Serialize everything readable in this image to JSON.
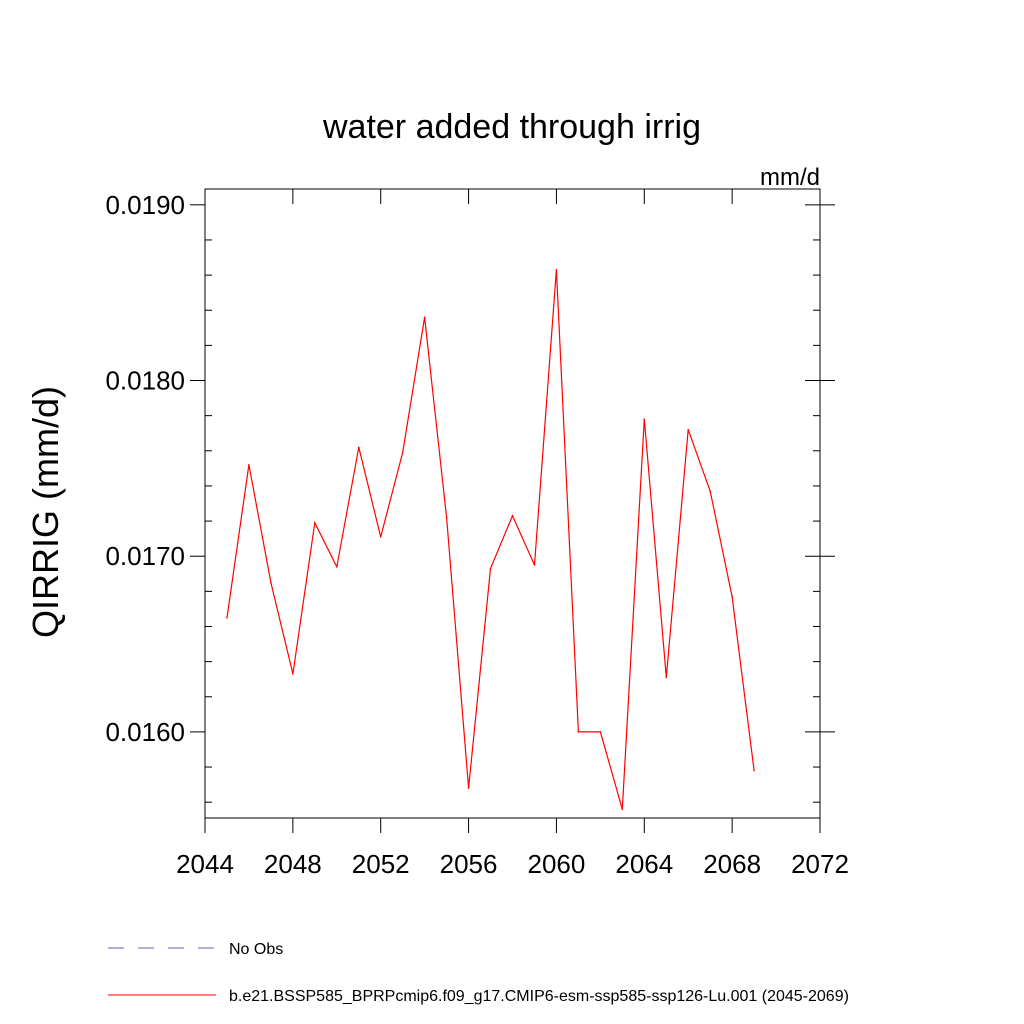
{
  "chart_data": {
    "type": "line",
    "title": "water added through irrig",
    "units": "mm/d",
    "ylabel": "QIRRIG  (mm/d)",
    "xlabel": "",
    "xlim": [
      2044,
      2072
    ],
    "ylim": [
      0.01551,
      0.01909
    ],
    "x_ticks": [
      2044,
      2048,
      2052,
      2056,
      2060,
      2064,
      2068,
      2072
    ],
    "x_tick_labels": [
      "2044",
      "2048",
      "2052",
      "2056",
      "2060",
      "2064",
      "2068",
      "2072"
    ],
    "y_ticks": [
      0.016,
      0.017,
      0.018,
      0.019
    ],
    "y_tick_labels": [
      "0.0160",
      "0.0170",
      "0.0180",
      "0.0190"
    ],
    "grid": false,
    "legend_position": "bottom",
    "series": [
      {
        "name": "No Obs",
        "color": "#6a5acd",
        "dash": "dashed",
        "x": [],
        "values": []
      },
      {
        "name": "b.e21.BSSP585_BPRPcmip6.f09_g17.CMIP6-esm-ssp585-ssp126-Lu.001 (2045-2069)",
        "color": "#ff0000",
        "dash": "solid",
        "x": [
          2045,
          2046,
          2047,
          2048,
          2049,
          2050,
          2051,
          2052,
          2053,
          2054,
          2055,
          2056,
          2057,
          2058,
          2059,
          2060,
          2061,
          2062,
          2063,
          2064,
          2065,
          2066,
          2067,
          2068,
          2069
        ],
        "values": [
          0.01665,
          0.01752,
          0.01685,
          0.01633,
          0.01719,
          0.01694,
          0.01762,
          0.01711,
          0.01759,
          0.01836,
          0.01722,
          0.01568,
          0.01693,
          0.01723,
          0.01695,
          0.01863,
          0.016,
          0.016,
          0.01556,
          0.01778,
          0.01631,
          0.01772,
          0.01737,
          0.01677,
          0.01578
        ]
      }
    ]
  }
}
